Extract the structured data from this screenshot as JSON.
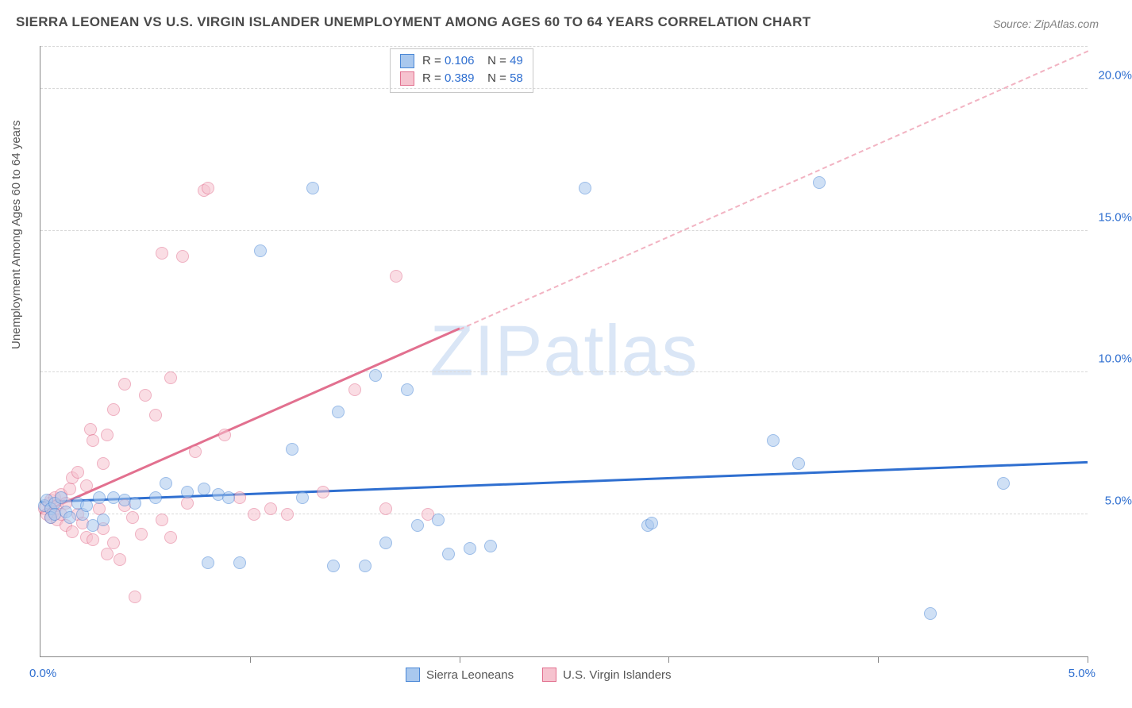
{
  "title": "SIERRA LEONEAN VS U.S. VIRGIN ISLANDER UNEMPLOYMENT AMONG AGES 60 TO 64 YEARS CORRELATION CHART",
  "source": "Source: ZipAtlas.com",
  "ylabel": "Unemployment Among Ages 60 to 64 years",
  "watermark_bold": "ZIP",
  "watermark_thin": "atlas",
  "chart": {
    "type": "scatter",
    "background_color": "#ffffff",
    "grid_color": "#d8d8d8",
    "axis_color": "#888888",
    "xlim": [
      0,
      5.0
    ],
    "ylim": [
      0,
      21.5
    ],
    "y_ticks": [
      5.0,
      10.0,
      15.0,
      20.0
    ],
    "y_tick_labels": [
      "5.0%",
      "10.0%",
      "15.0%",
      "20.0%"
    ],
    "x_ticks": [
      1.0,
      2.0,
      3.0,
      4.0,
      5.0
    ],
    "x_start_label": "0.0%",
    "x_end_label": "5.0%",
    "marker_radius": 8,
    "marker_opacity": 0.55,
    "series": [
      {
        "name": "Sierra Leoneans",
        "label": "Sierra Leoneans",
        "fill": "#a9c8ee",
        "stroke": "#4a87d6",
        "R_label": "R = ",
        "R": "0.106",
        "N_label": "N = ",
        "N": "49",
        "trend": {
          "x1": 0.0,
          "y1": 5.4,
          "x2": 5.0,
          "y2": 6.8,
          "color": "#2f6fd0",
          "width": 3,
          "dash": false
        },
        "points": [
          [
            0.02,
            5.3
          ],
          [
            0.03,
            5.5
          ],
          [
            0.05,
            5.2
          ],
          [
            0.05,
            4.9
          ],
          [
            0.07,
            5.4
          ],
          [
            0.07,
            5.0
          ],
          [
            0.1,
            5.6
          ],
          [
            0.12,
            5.1
          ],
          [
            0.14,
            4.9
          ],
          [
            0.18,
            5.4
          ],
          [
            0.2,
            5.0
          ],
          [
            0.22,
            5.3
          ],
          [
            0.25,
            4.6
          ],
          [
            0.28,
            5.6
          ],
          [
            0.3,
            4.8
          ],
          [
            0.35,
            5.6
          ],
          [
            0.4,
            5.5
          ],
          [
            0.45,
            5.4
          ],
          [
            0.55,
            5.6
          ],
          [
            0.6,
            6.1
          ],
          [
            0.7,
            5.8
          ],
          [
            0.78,
            5.9
          ],
          [
            0.85,
            5.7
          ],
          [
            0.8,
            3.3
          ],
          [
            0.9,
            5.6
          ],
          [
            0.95,
            3.3
          ],
          [
            1.05,
            14.3
          ],
          [
            1.2,
            7.3
          ],
          [
            1.25,
            5.6
          ],
          [
            1.3,
            16.5
          ],
          [
            1.4,
            3.2
          ],
          [
            1.42,
            8.6
          ],
          [
            1.55,
            3.2
          ],
          [
            1.6,
            9.9
          ],
          [
            1.65,
            4.0
          ],
          [
            1.75,
            9.4
          ],
          [
            1.8,
            4.6
          ],
          [
            1.9,
            4.8
          ],
          [
            1.95,
            3.6
          ],
          [
            2.05,
            3.8
          ],
          [
            2.15,
            3.9
          ],
          [
            2.6,
            16.5
          ],
          [
            2.9,
            4.6
          ],
          [
            2.92,
            4.7
          ],
          [
            3.5,
            7.6
          ],
          [
            3.62,
            6.8
          ],
          [
            3.72,
            16.7
          ],
          [
            4.25,
            1.5
          ],
          [
            4.6,
            6.1
          ]
        ]
      },
      {
        "name": "U.S. Virgin Islanders",
        "label": "U.S. Virgin Islanders",
        "fill": "#f6c3cf",
        "stroke": "#e2708f",
        "R_label": "R = ",
        "R": "0.389",
        "N_label": "N = ",
        "N": "58",
        "trend_solid": {
          "x1": 0.0,
          "y1": 5.0,
          "x2": 2.0,
          "y2": 11.5,
          "color": "#e2708f",
          "width": 3
        },
        "trend_dash": {
          "x1": 2.0,
          "y1": 11.5,
          "x2": 5.0,
          "y2": 21.3,
          "color": "#f2b3c2",
          "width": 2
        },
        "points": [
          [
            0.02,
            5.2
          ],
          [
            0.03,
            5.0
          ],
          [
            0.04,
            5.4
          ],
          [
            0.05,
            4.9
          ],
          [
            0.05,
            5.5
          ],
          [
            0.06,
            5.1
          ],
          [
            0.07,
            5.6
          ],
          [
            0.08,
            4.8
          ],
          [
            0.08,
            5.3
          ],
          [
            0.1,
            5.0
          ],
          [
            0.1,
            5.7
          ],
          [
            0.12,
            4.6
          ],
          [
            0.12,
            5.4
          ],
          [
            0.14,
            5.9
          ],
          [
            0.15,
            4.4
          ],
          [
            0.15,
            6.3
          ],
          [
            0.18,
            5.0
          ],
          [
            0.18,
            6.5
          ],
          [
            0.2,
            4.7
          ],
          [
            0.22,
            4.2
          ],
          [
            0.22,
            6.0
          ],
          [
            0.24,
            8.0
          ],
          [
            0.25,
            4.1
          ],
          [
            0.25,
            7.6
          ],
          [
            0.28,
            5.2
          ],
          [
            0.3,
            4.5
          ],
          [
            0.3,
            6.8
          ],
          [
            0.32,
            3.6
          ],
          [
            0.32,
            7.8
          ],
          [
            0.35,
            4.0
          ],
          [
            0.35,
            8.7
          ],
          [
            0.38,
            3.4
          ],
          [
            0.4,
            5.3
          ],
          [
            0.4,
            9.6
          ],
          [
            0.44,
            4.9
          ],
          [
            0.45,
            2.1
          ],
          [
            0.48,
            4.3
          ],
          [
            0.5,
            9.2
          ],
          [
            0.55,
            8.5
          ],
          [
            0.58,
            14.2
          ],
          [
            0.58,
            4.8
          ],
          [
            0.62,
            4.2
          ],
          [
            0.62,
            9.8
          ],
          [
            0.68,
            14.1
          ],
          [
            0.7,
            5.4
          ],
          [
            0.74,
            7.2
          ],
          [
            0.78,
            16.4
          ],
          [
            0.8,
            16.5
          ],
          [
            0.88,
            7.8
          ],
          [
            0.95,
            5.6
          ],
          [
            1.02,
            5.0
          ],
          [
            1.1,
            5.2
          ],
          [
            1.18,
            5.0
          ],
          [
            1.35,
            5.8
          ],
          [
            1.5,
            9.4
          ],
          [
            1.65,
            5.2
          ],
          [
            1.7,
            13.4
          ],
          [
            1.85,
            5.0
          ]
        ]
      }
    ]
  }
}
